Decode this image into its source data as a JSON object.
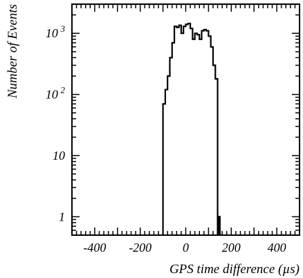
{
  "chart_data": {
    "type": "histogram",
    "title": "",
    "xlabel": "GPS time difference (µs)",
    "ylabel": "Number of Events",
    "xlim": [
      -500,
      500
    ],
    "ylim": [
      0.5,
      3000
    ],
    "yscale": "log",
    "grid": false,
    "x_ticks": [
      {
        "value": -400,
        "label": "-400"
      },
      {
        "value": -200,
        "label": "-200"
      },
      {
        "value": 0,
        "label": "0"
      },
      {
        "value": 200,
        "label": "200"
      },
      {
        "value": 400,
        "label": "400"
      }
    ],
    "y_ticks": [
      {
        "value": 1,
        "base": "1",
        "exp": ""
      },
      {
        "value": 10,
        "base": "10",
        "exp": ""
      },
      {
        "value": 100,
        "base": "10",
        "exp": "2"
      },
      {
        "value": 1000,
        "base": "10",
        "exp": "3"
      }
    ],
    "bin_width": 10,
    "bin_edges_start": -100,
    "bin_counts": [
      70,
      120,
      200,
      400,
      700,
      1300,
      1250,
      1350,
      1000,
      1300,
      1400,
      1450,
      1200,
      800,
      1000,
      950,
      800,
      1100,
      1150,
      1100,
      900,
      600,
      300,
      180
    ],
    "extra_bins": [
      {
        "x0": 145,
        "x1": 150,
        "value": 1
      }
    ]
  }
}
